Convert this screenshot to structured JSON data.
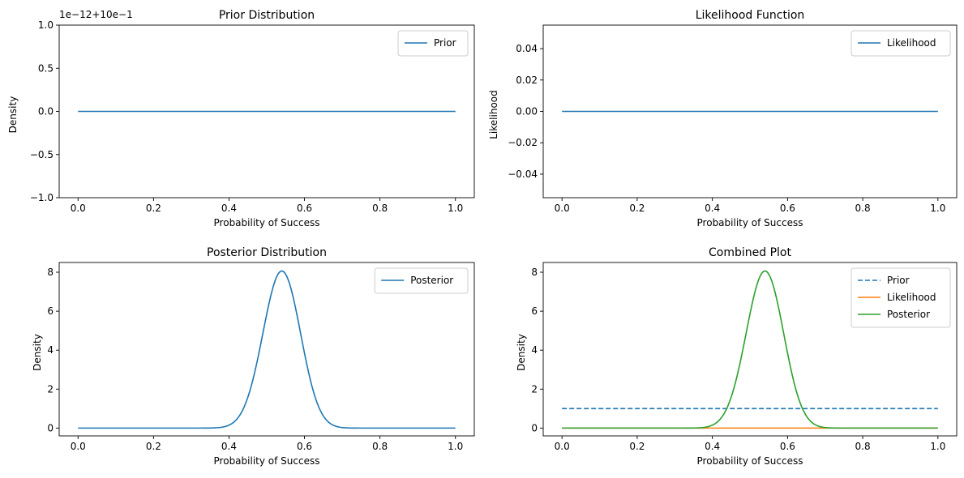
{
  "chart_data": [
    {
      "type": "line",
      "title": "Prior Distribution",
      "xlabel": "Probability of Success",
      "ylabel": "Density",
      "xlim": [
        -0.05,
        1.05
      ],
      "ylim": [
        -1.0,
        1.0
      ],
      "offset_text": "1e−12+10e−1",
      "xticks": [
        0.0,
        0.2,
        0.4,
        0.6,
        0.8,
        1.0
      ],
      "xtick_labels": [
        "0.0",
        "0.2",
        "0.4",
        "0.6",
        "0.8",
        "1.0"
      ],
      "yticks": [
        -1.0,
        -0.5,
        0.0,
        0.5,
        1.0
      ],
      "ytick_labels": [
        "−1.0",
        "−0.5",
        "0.0",
        "0.5",
        "1.0"
      ],
      "legend": "top-right",
      "series": [
        {
          "name": "Prior",
          "color": "#1f77b4",
          "dash": false,
          "kind": "constant",
          "value": 0.0
        }
      ]
    },
    {
      "type": "line",
      "title": "Likelihood Function",
      "xlabel": "Probability of Success",
      "ylabel": "Likelihood",
      "xlim": [
        -0.05,
        1.05
      ],
      "ylim": [
        -0.055,
        0.055
      ],
      "xticks": [
        0.0,
        0.2,
        0.4,
        0.6,
        0.8,
        1.0
      ],
      "xtick_labels": [
        "0.0",
        "0.2",
        "0.4",
        "0.6",
        "0.8",
        "1.0"
      ],
      "yticks": [
        -0.04,
        -0.02,
        0.0,
        0.02,
        0.04
      ],
      "ytick_labels": [
        "−0.04",
        "−0.02",
        "0.00",
        "0.02",
        "0.04"
      ],
      "legend": "top-right",
      "series": [
        {
          "name": "Likelihood",
          "color": "#1f77b4",
          "dash": false,
          "kind": "constant",
          "value": 0.0
        }
      ]
    },
    {
      "type": "line",
      "title": "Posterior Distribution",
      "xlabel": "Probability of Success",
      "ylabel": "Density",
      "xlim": [
        -0.05,
        1.05
      ],
      "ylim": [
        -0.4,
        8.5
      ],
      "xticks": [
        0.0,
        0.2,
        0.4,
        0.6,
        0.8,
        1.0
      ],
      "xtick_labels": [
        "0.0",
        "0.2",
        "0.4",
        "0.6",
        "0.8",
        "1.0"
      ],
      "yticks": [
        0,
        2,
        4,
        6,
        8
      ],
      "ytick_labels": [
        "0",
        "2",
        "4",
        "6",
        "8"
      ],
      "legend": "top-right",
      "series": [
        {
          "name": "Posterior",
          "color": "#1f77b4",
          "dash": false,
          "kind": "beta",
          "alpha": 55,
          "beta": 47
        }
      ]
    },
    {
      "type": "line",
      "title": "Combined Plot",
      "xlabel": "Probability of Success",
      "ylabel": "Density",
      "xlim": [
        -0.05,
        1.05
      ],
      "ylim": [
        -0.4,
        8.5
      ],
      "xticks": [
        0.0,
        0.2,
        0.4,
        0.6,
        0.8,
        1.0
      ],
      "xtick_labels": [
        "0.0",
        "0.2",
        "0.4",
        "0.6",
        "0.8",
        "1.0"
      ],
      "yticks": [
        0,
        2,
        4,
        6,
        8
      ],
      "ytick_labels": [
        "0",
        "2",
        "4",
        "6",
        "8"
      ],
      "legend": "top-right",
      "series": [
        {
          "name": "Prior",
          "color": "#1f77b4",
          "dash": true,
          "kind": "constant",
          "value": 1.0
        },
        {
          "name": "Likelihood",
          "color": "#ff7f0e",
          "dash": false,
          "kind": "constant",
          "value": 0.0
        },
        {
          "name": "Posterior",
          "color": "#2ca02c",
          "dash": false,
          "kind": "beta",
          "alpha": 55,
          "beta": 47
        }
      ]
    }
  ]
}
